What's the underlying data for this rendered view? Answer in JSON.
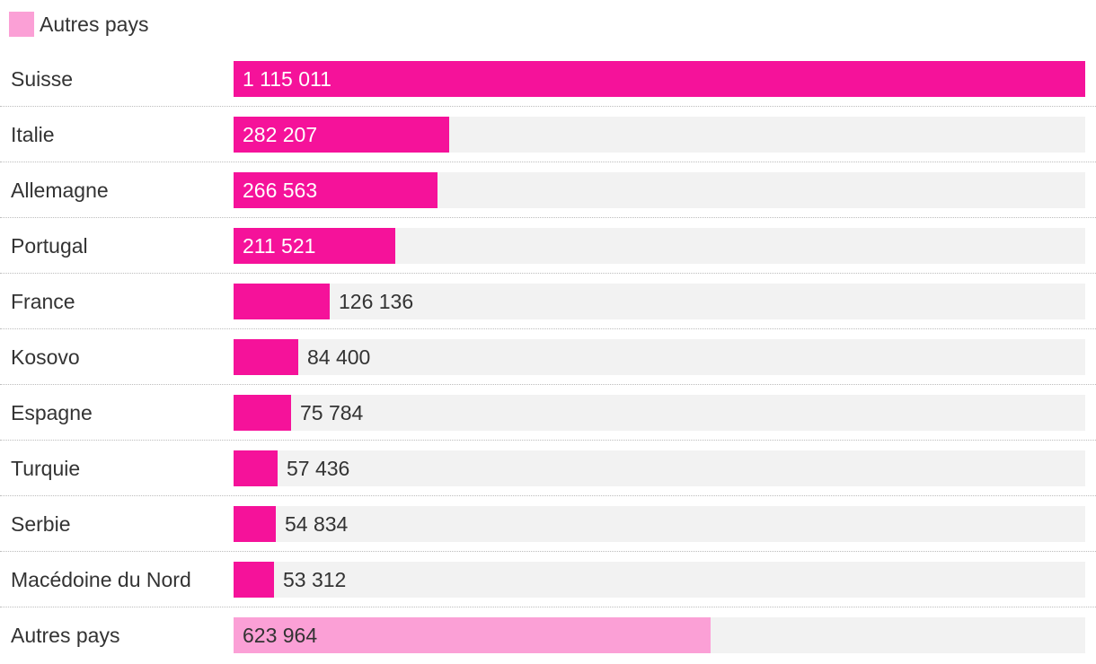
{
  "legend": {
    "label": "Autres pays",
    "color": "#fba0d6"
  },
  "chart_data": {
    "type": "bar",
    "orientation": "horizontal",
    "title": "",
    "xlabel": "",
    "ylabel": "",
    "xlim": [
      0,
      1115011
    ],
    "grid": false,
    "legend_position": "top-left",
    "colors": {
      "main": "#f5129a",
      "other": "#fba0d6",
      "track": "#f2f2f2"
    },
    "categories": [
      "Suisse",
      "Italie",
      "Allemagne",
      "Portugal",
      "France",
      "Kosovo",
      "Espagne",
      "Turquie",
      "Serbie",
      "Macédoine du Nord",
      "Autres pays"
    ],
    "values": [
      1115011,
      282207,
      266563,
      211521,
      126136,
      84400,
      75784,
      57436,
      54834,
      53312,
      623964
    ],
    "value_labels": [
      "1 115 011",
      "282 207",
      "266 563",
      "211 521",
      "126 136",
      "84 400",
      "75 784",
      "57 436",
      "54 834",
      "53 312",
      "623 964"
    ],
    "highlight": [
      "main",
      "main",
      "main",
      "main",
      "main",
      "main",
      "main",
      "main",
      "main",
      "main",
      "other"
    ]
  }
}
